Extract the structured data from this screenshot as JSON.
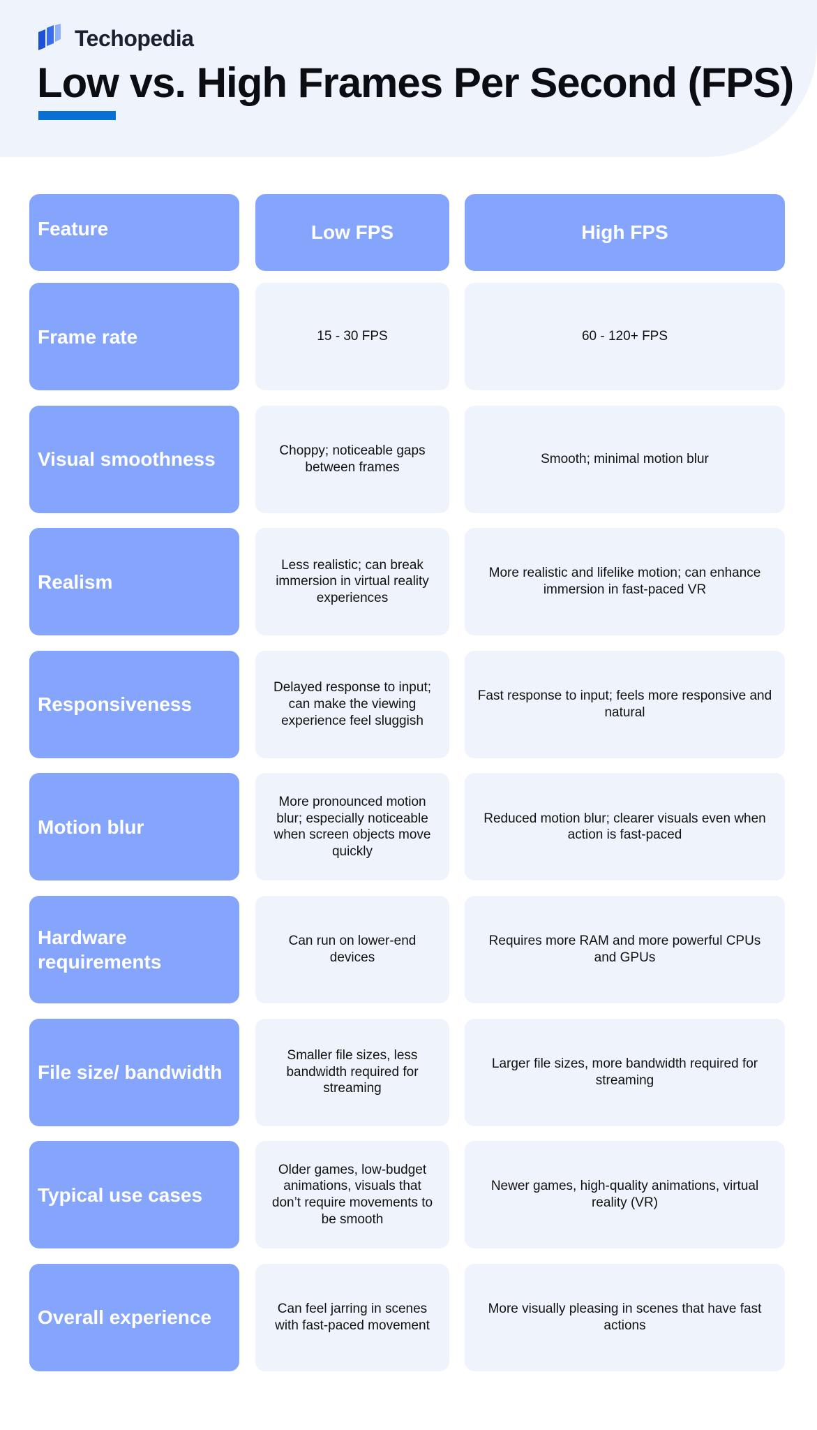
{
  "brand": {
    "name": "Techopedia",
    "colors": {
      "primary": "#84a5fb",
      "accent": "#0a6fd4",
      "cell_bg": "#eff3fc"
    }
  },
  "title": "Low vs. High Frames Per Second (FPS)",
  "table": {
    "headers": [
      "Feature",
      "Low FPS",
      "High FPS"
    ],
    "rows": [
      {
        "feature": "Frame rate",
        "low": "15 - 30 FPS",
        "high": "60 - 120+ FPS"
      },
      {
        "feature": "Visual smoothness",
        "low": "Choppy; noticeable gaps between frames",
        "high": "Smooth; minimal motion blur"
      },
      {
        "feature": "Realism",
        "low": "Less realistic; can break immersion in virtual reality experiences",
        "high": "More realistic and lifelike motion; can enhance immersion in fast-paced VR"
      },
      {
        "feature": "Responsiveness",
        "low": "Delayed response to input; can make the viewing experience feel sluggish",
        "high": "Fast response to input; feels more responsive and natural"
      },
      {
        "feature": "Motion blur",
        "low": "More pronounced motion blur; especially noticeable when screen objects move quickly",
        "high": "Reduced motion blur; clearer visuals even when action is fast-paced"
      },
      {
        "feature": "Hardware requirements",
        "low": "Can run on lower-end devices",
        "high": "Requires more RAM and more powerful CPUs and GPUs"
      },
      {
        "feature": "File size/ bandwidth",
        "low": "Smaller file sizes, less bandwidth required for streaming",
        "high": "Larger file sizes, more bandwidth required for streaming"
      },
      {
        "feature": "Typical use cases",
        "low": "Older games, low-budget animations, visuals that don’t require movements to be smooth",
        "high": "Newer games, high-quality animations, virtual reality (VR)"
      },
      {
        "feature": "Overall experience",
        "low": "Can feel jarring in scenes with fast-paced movement",
        "high": "More visually pleasing in scenes that have fast actions"
      }
    ]
  }
}
